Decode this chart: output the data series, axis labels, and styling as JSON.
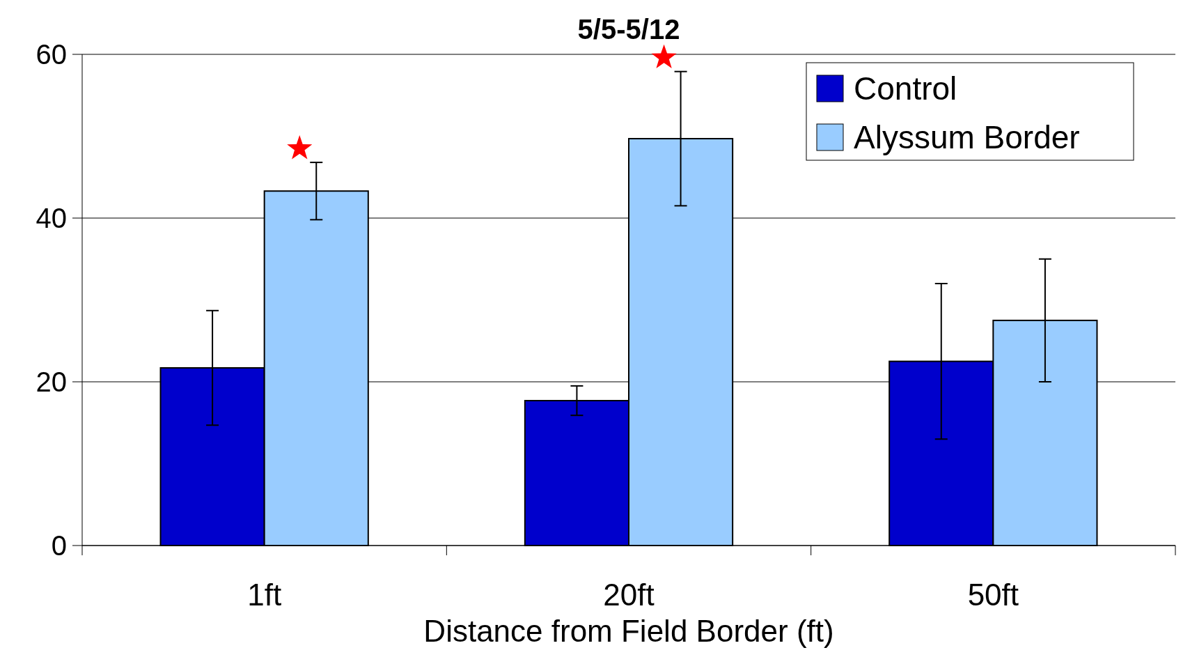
{
  "chart_data": {
    "type": "bar",
    "title": "5/5-5/12",
    "xlabel": "Distance from Field Border (ft)",
    "categories": [
      "1ft",
      "20ft",
      "50ft"
    ],
    "series": [
      {
        "name": "Control",
        "color": "#0000cc",
        "values": [
          21.7,
          17.7,
          22.5
        ],
        "errors": [
          7,
          1.8,
          9.5
        ]
      },
      {
        "name": "Alyssum Border",
        "color": "#99ccff",
        "values": [
          43.3,
          49.7,
          27.5
        ],
        "errors": [
          3.5,
          8.2,
          7.5
        ]
      }
    ],
    "ylim": [
      0,
      60
    ],
    "yticks": [
      0,
      20,
      40,
      60
    ],
    "grid": "y",
    "legend": "top right"
  }
}
